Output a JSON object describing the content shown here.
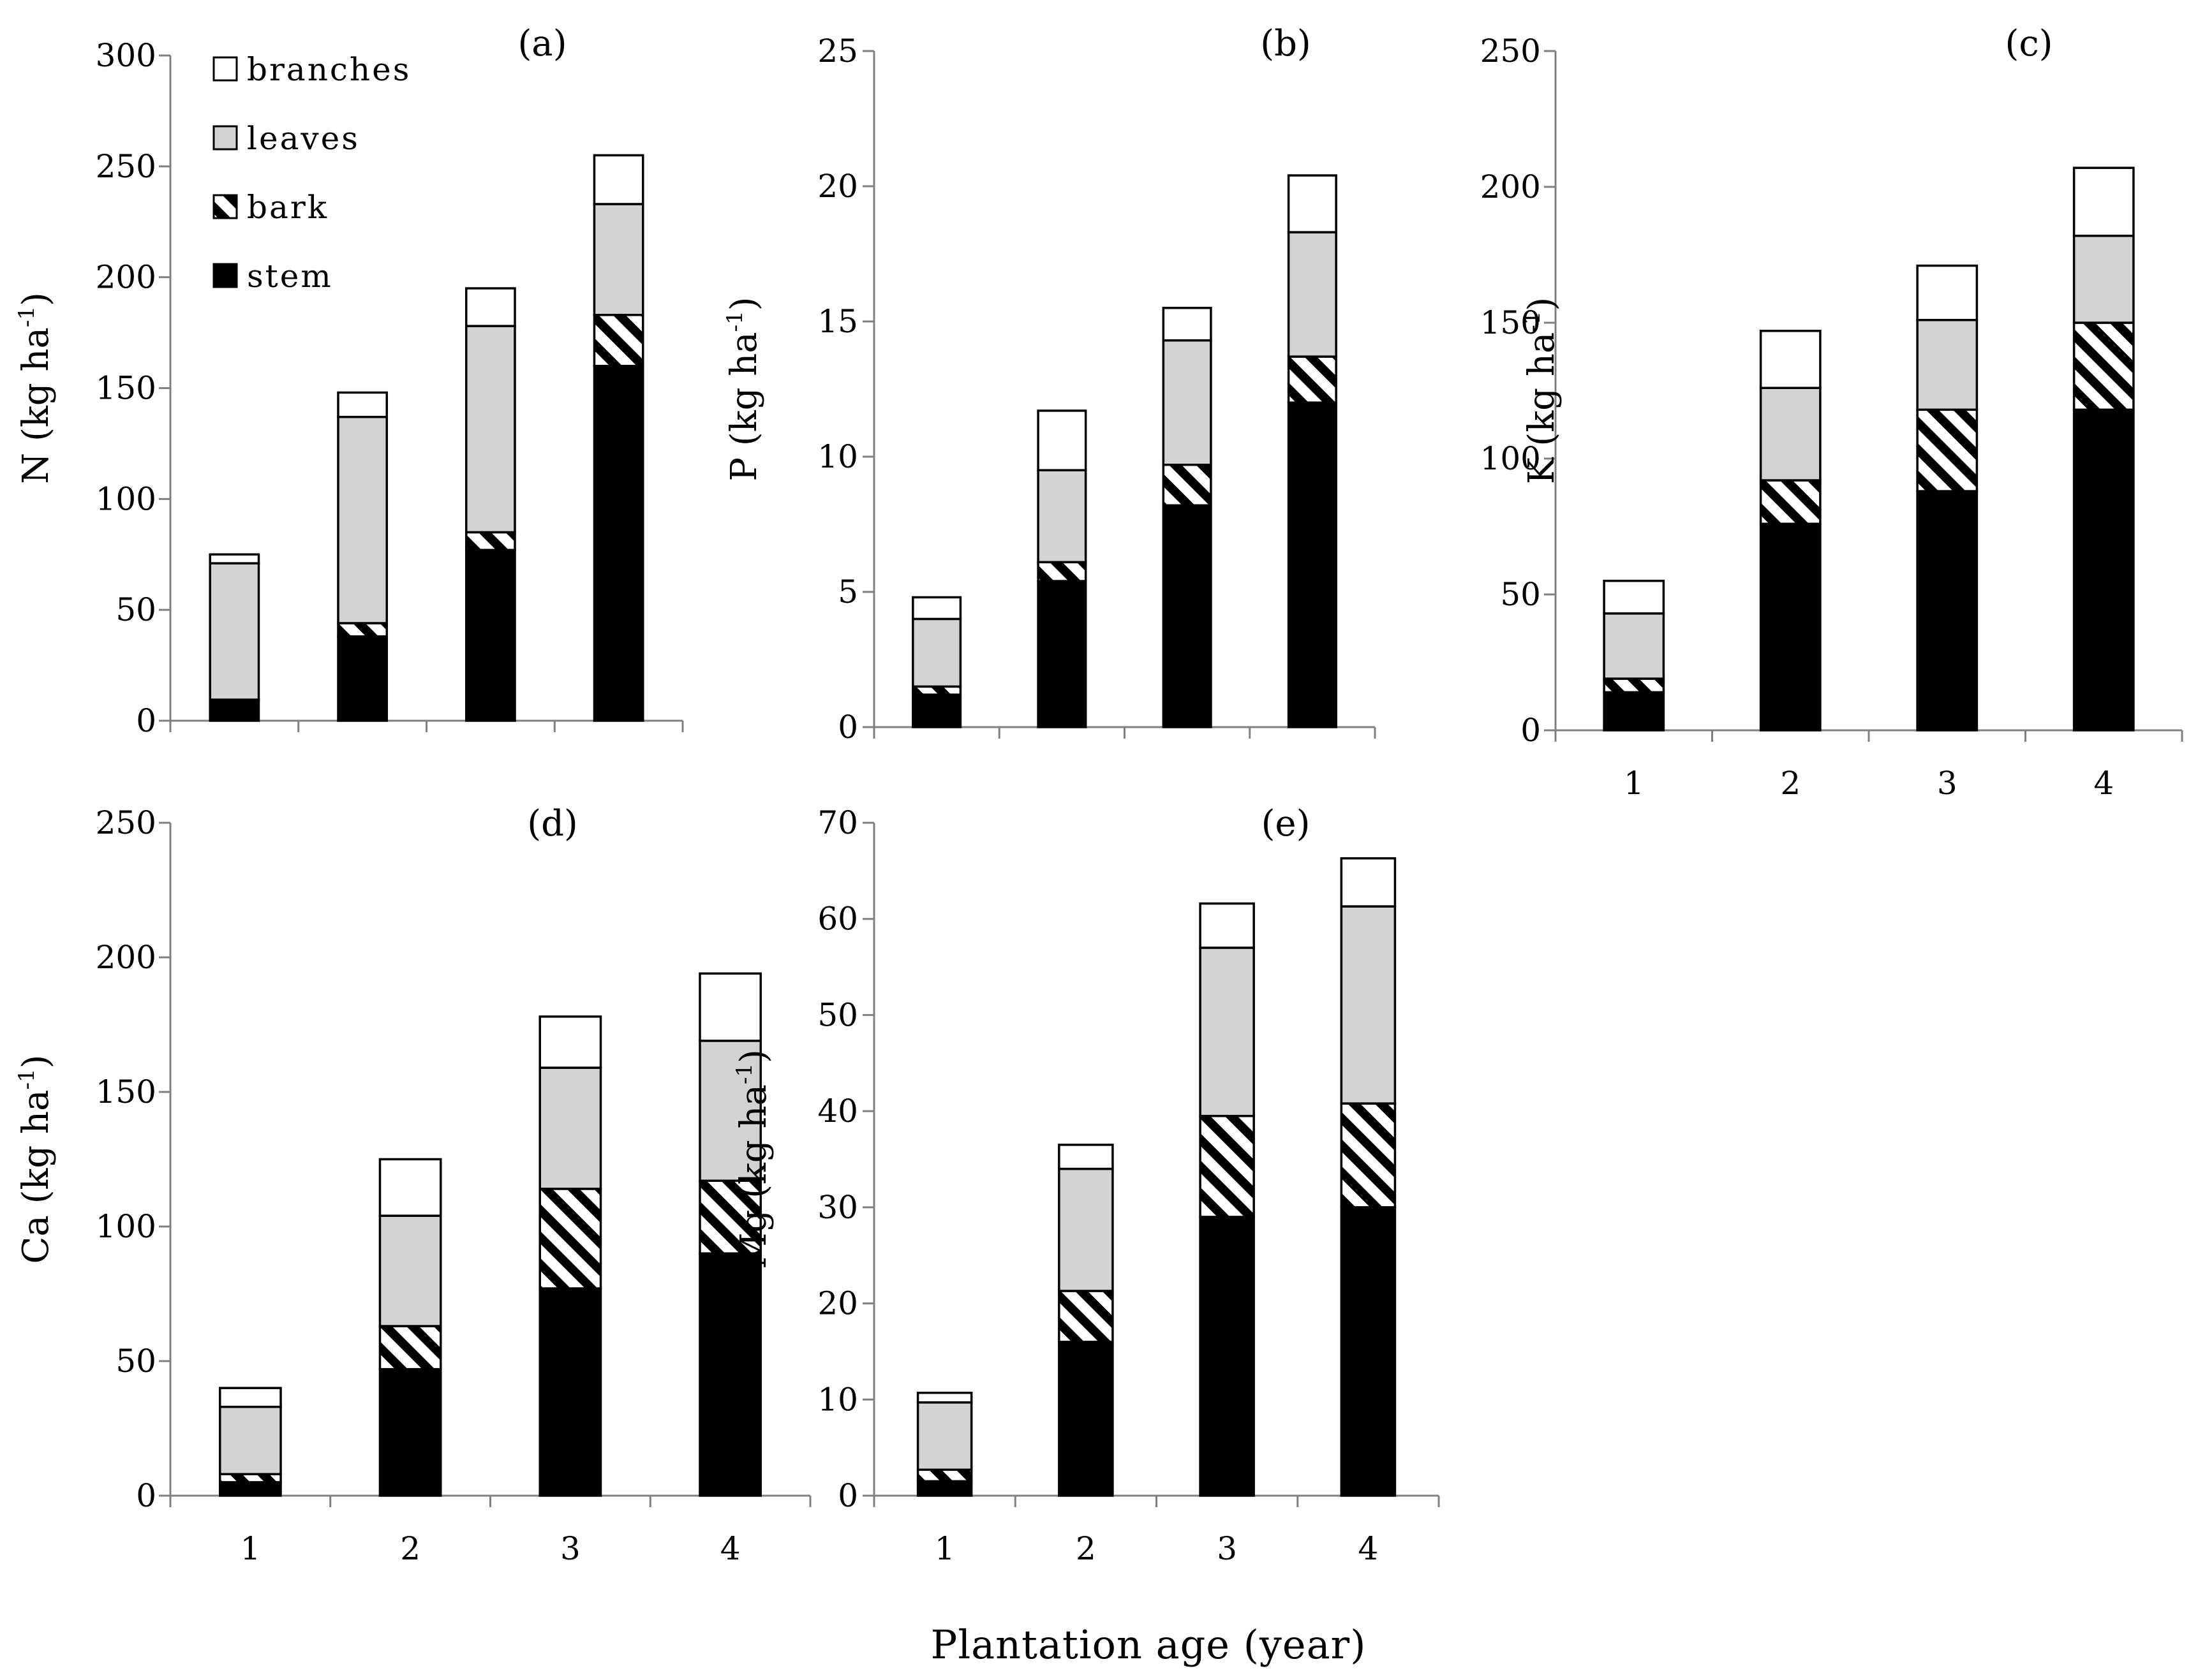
{
  "figure": {
    "xlabel": "Plantation age (year)",
    "legend": [
      {
        "label": "branches",
        "fill": "branches"
      },
      {
        "label": "leaves",
        "fill": "leaves"
      },
      {
        "label": "bark",
        "fill": "bark"
      },
      {
        "label": "stem",
        "fill": "stem"
      }
    ],
    "colors": {
      "stem": "#000000",
      "bark": "hatch",
      "leaves": "#d3d3d3",
      "branches": "#ffffff",
      "axis": "#808080"
    }
  },
  "chart_data": [
    {
      "id": "a",
      "type": "bar",
      "stacked": true,
      "panel_label": "(a)",
      "ylabel": "N",
      "yunit": "(kg ha",
      "ysup": "-1",
      "ylim": [
        0,
        300
      ],
      "yticks": [
        0,
        50,
        100,
        150,
        200,
        250,
        300
      ],
      "categories": [
        "1",
        "2",
        "3",
        "4"
      ],
      "show_xticklabels": false,
      "series": [
        {
          "name": "stem",
          "values": [
            9,
            38,
            77,
            160
          ]
        },
        {
          "name": "bark",
          "values": [
            0.5,
            6,
            8,
            23
          ]
        },
        {
          "name": "leaves",
          "values": [
            61.5,
            93,
            93,
            50
          ]
        },
        {
          "name": "branches",
          "values": [
            4,
            11,
            17,
            22
          ]
        }
      ]
    },
    {
      "id": "b",
      "type": "bar",
      "stacked": true,
      "panel_label": "(b)",
      "ylabel": "P",
      "yunit": "(kg ha",
      "ysup": "-1",
      "ylim": [
        0,
        25
      ],
      "yticks": [
        0,
        5,
        10,
        15,
        20,
        25
      ],
      "categories": [
        "1",
        "2",
        "3",
        "4"
      ],
      "show_xticklabels": false,
      "series": [
        {
          "name": "stem",
          "values": [
            1.2,
            5.4,
            8.2,
            12.0
          ]
        },
        {
          "name": "bark",
          "values": [
            0.3,
            0.7,
            1.5,
            1.7
          ]
        },
        {
          "name": "leaves",
          "values": [
            2.5,
            3.4,
            4.6,
            4.6
          ]
        },
        {
          "name": "branches",
          "values": [
            0.8,
            2.2,
            1.2,
            2.1
          ]
        }
      ]
    },
    {
      "id": "c",
      "type": "bar",
      "stacked": true,
      "panel_label": "(c)",
      "ylabel": "K",
      "yunit": "(kg ha",
      "ysup": "-1",
      "ylim": [
        0,
        250
      ],
      "yticks": [
        0,
        50,
        100,
        150,
        200,
        250
      ],
      "categories": [
        "1",
        "2",
        "3",
        "4"
      ],
      "show_xticklabels": true,
      "series": [
        {
          "name": "stem",
          "values": [
            14,
            76,
            88,
            118
          ]
        },
        {
          "name": "bark",
          "values": [
            5,
            16,
            30,
            32
          ]
        },
        {
          "name": "leaves",
          "values": [
            24,
            34,
            33,
            32
          ]
        },
        {
          "name": "branches",
          "values": [
            12,
            21,
            20,
            25
          ]
        }
      ]
    },
    {
      "id": "d",
      "type": "bar",
      "stacked": true,
      "panel_label": "(d)",
      "ylabel": "Ca",
      "yunit": "(kg ha",
      "ysup": "-1",
      "ylim": [
        0,
        250
      ],
      "yticks": [
        0,
        50,
        100,
        150,
        200,
        250
      ],
      "categories": [
        "1",
        "2",
        "3",
        "4"
      ],
      "show_xticklabels": true,
      "series": [
        {
          "name": "stem",
          "values": [
            5,
            47,
            77,
            90
          ]
        },
        {
          "name": "bark",
          "values": [
            3,
            16,
            37,
            27
          ]
        },
        {
          "name": "leaves",
          "values": [
            25,
            41,
            45,
            52
          ]
        },
        {
          "name": "branches",
          "values": [
            7,
            21,
            19,
            25
          ]
        }
      ]
    },
    {
      "id": "e",
      "type": "bar",
      "stacked": true,
      "panel_label": "(e)",
      "ylabel": "Mg",
      "yunit": "(kg ha",
      "ysup": "-1",
      "ylim": [
        0,
        70
      ],
      "yticks": [
        0,
        10,
        20,
        30,
        40,
        50,
        60,
        70
      ],
      "categories": [
        "1",
        "2",
        "3",
        "4"
      ],
      "show_xticklabels": true,
      "series": [
        {
          "name": "stem",
          "values": [
            1.5,
            16,
            29,
            30
          ]
        },
        {
          "name": "bark",
          "values": [
            1.2,
            5.3,
            10.5,
            10.8
          ]
        },
        {
          "name": "leaves",
          "values": [
            7.0,
            12.7,
            17.5,
            20.5
          ]
        },
        {
          "name": "branches",
          "values": [
            1.0,
            2.5,
            4.6,
            5.0
          ]
        }
      ]
    }
  ]
}
